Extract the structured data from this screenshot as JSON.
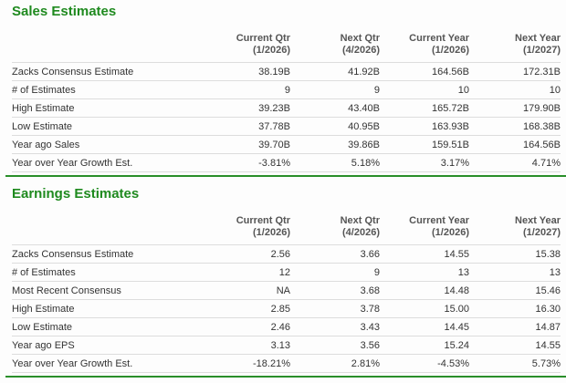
{
  "colors": {
    "accent": "#1f8a1f",
    "rule": "#2a8f2a"
  },
  "sales": {
    "title": "Sales Estimates",
    "columns": [
      {
        "name": "Current Qtr",
        "period": "(1/2026)"
      },
      {
        "name": "Next Qtr",
        "period": "(4/2026)"
      },
      {
        "name": "Current Year",
        "period": "(1/2026)"
      },
      {
        "name": "Next Year",
        "period": "(1/2027)"
      }
    ],
    "rows": [
      {
        "label": "Zacks Consensus Estimate",
        "values": [
          "38.19B",
          "41.92B",
          "164.56B",
          "172.31B"
        ]
      },
      {
        "label": "# of Estimates",
        "values": [
          "9",
          "9",
          "10",
          "10"
        ]
      },
      {
        "label": "High Estimate",
        "values": [
          "39.23B",
          "43.40B",
          "165.72B",
          "179.90B"
        ]
      },
      {
        "label": "Low Estimate",
        "values": [
          "37.78B",
          "40.95B",
          "163.93B",
          "168.38B"
        ]
      },
      {
        "label": "Year ago Sales",
        "values": [
          "39.70B",
          "39.86B",
          "159.51B",
          "164.56B"
        ]
      },
      {
        "label": "Year over Year Growth Est.",
        "values": [
          "-3.81%",
          "5.18%",
          "3.17%",
          "4.71%"
        ]
      }
    ]
  },
  "earnings": {
    "title": "Earnings Estimates",
    "columns": [
      {
        "name": "Current Qtr",
        "period": "(1/2026)"
      },
      {
        "name": "Next Qtr",
        "period": "(4/2026)"
      },
      {
        "name": "Current Year",
        "period": "(1/2026)"
      },
      {
        "name": "Next Year",
        "period": "(1/2027)"
      }
    ],
    "rows": [
      {
        "label": "Zacks Consensus Estimate",
        "values": [
          "2.56",
          "3.66",
          "14.55",
          "15.38"
        ]
      },
      {
        "label": "# of Estimates",
        "values": [
          "12",
          "9",
          "13",
          "13"
        ]
      },
      {
        "label": "Most Recent Consensus",
        "values": [
          "NA",
          "3.68",
          "14.48",
          "15.46"
        ]
      },
      {
        "label": "High Estimate",
        "values": [
          "2.85",
          "3.78",
          "15.00",
          "16.30"
        ]
      },
      {
        "label": "Low Estimate",
        "values": [
          "2.46",
          "3.43",
          "14.45",
          "14.87"
        ]
      },
      {
        "label": "Year ago EPS",
        "values": [
          "3.13",
          "3.56",
          "15.24",
          "14.55"
        ]
      },
      {
        "label": "Year over Year Growth Est.",
        "values": [
          "-18.21%",
          "2.81%",
          "-4.53%",
          "5.73%"
        ]
      }
    ]
  }
}
